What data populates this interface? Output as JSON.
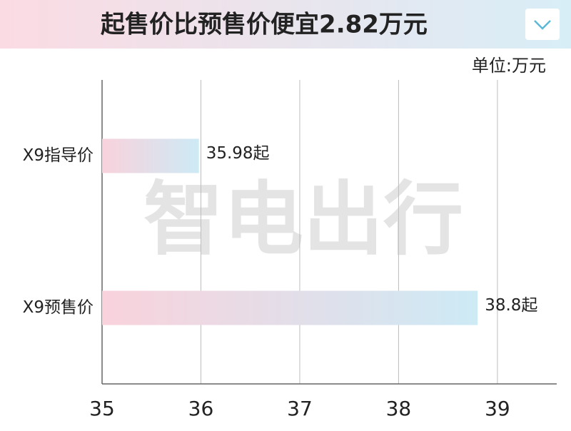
{
  "chart_data": {
    "type": "bar",
    "orientation": "horizontal",
    "title": "起售价比预售价便宜2.82万元",
    "unit_label": "单位:万元",
    "watermark": "智电出行",
    "categories": [
      "X9指导价",
      "X9预售价"
    ],
    "values": [
      35.98,
      38.8
    ],
    "value_labels": [
      "35.98起",
      "38.8起"
    ],
    "colors": [
      "#f9d2dc",
      "#cdeaf5"
    ],
    "xlim": [
      35,
      39.6
    ],
    "xticks": [
      35,
      36,
      37,
      38,
      39
    ],
    "grid": true
  }
}
